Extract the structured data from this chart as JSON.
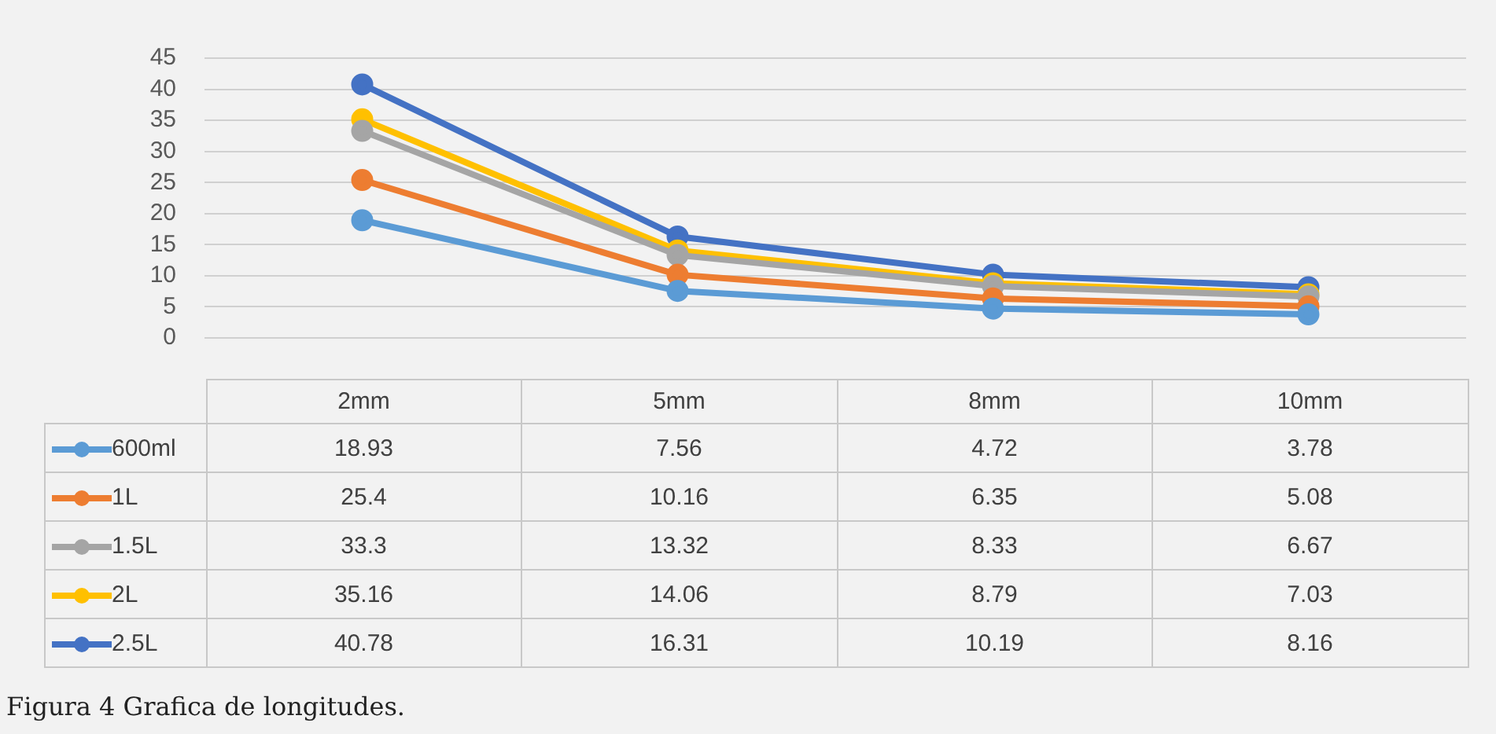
{
  "chart_data": {
    "type": "line",
    "categories": [
      "2mm",
      "5mm",
      "8mm",
      "10mm"
    ],
    "series": [
      {
        "name": "600ml",
        "color": "#5b9bd5",
        "values": [
          18.93,
          7.56,
          4.72,
          3.78
        ]
      },
      {
        "name": "1L",
        "color": "#ed7d31",
        "values": [
          25.4,
          10.16,
          6.35,
          5.08
        ]
      },
      {
        "name": "1.5L",
        "color": "#a5a5a5",
        "values": [
          33.3,
          13.32,
          8.33,
          6.67
        ]
      },
      {
        "name": "2L",
        "color": "#ffc000",
        "values": [
          35.16,
          14.06,
          8.79,
          7.03
        ]
      },
      {
        "name": "2.5L",
        "color": "#4472c4",
        "values": [
          40.78,
          16.31,
          10.19,
          8.16
        ]
      }
    ],
    "ylim": [
      0,
      45
    ],
    "yticks": [
      0,
      5,
      10,
      15,
      20,
      25,
      30,
      35,
      40,
      45
    ],
    "grid": "y",
    "marker": "circle",
    "line_style": "solid",
    "legend": "bottom left",
    "data_labels": true,
    "annotations": [
      "Figura 4 Grafica de longitudes."
    ]
  }
}
